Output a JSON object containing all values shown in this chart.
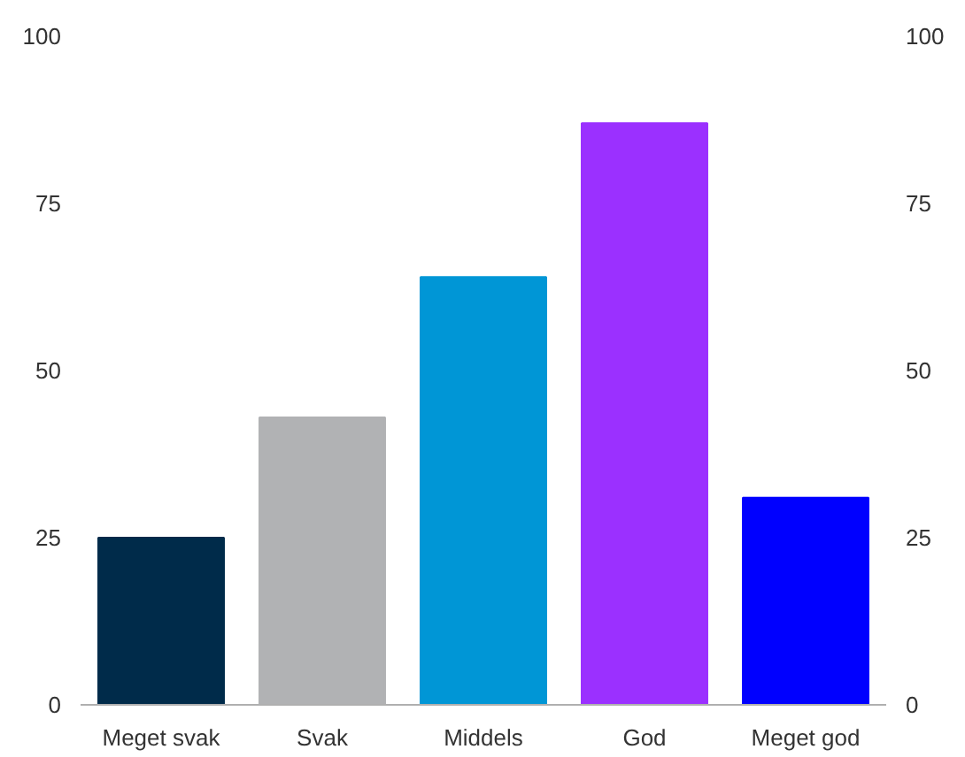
{
  "chart_data": {
    "type": "bar",
    "categories": [
      "Meget svak",
      "Svak",
      "Middels",
      "God",
      "Meget god"
    ],
    "values": [
      25,
      43,
      64,
      87,
      31
    ],
    "colors": [
      "#002b4a",
      "#b1b2b4",
      "#0096d6",
      "#9b30ff",
      "#0000ff"
    ],
    "ylim": [
      0,
      100
    ],
    "yticks": [
      0,
      25,
      50,
      75,
      100
    ],
    "y2lim": [
      0,
      100
    ],
    "y2ticks": [
      0,
      25,
      50,
      75,
      100
    ],
    "grid": false
  }
}
